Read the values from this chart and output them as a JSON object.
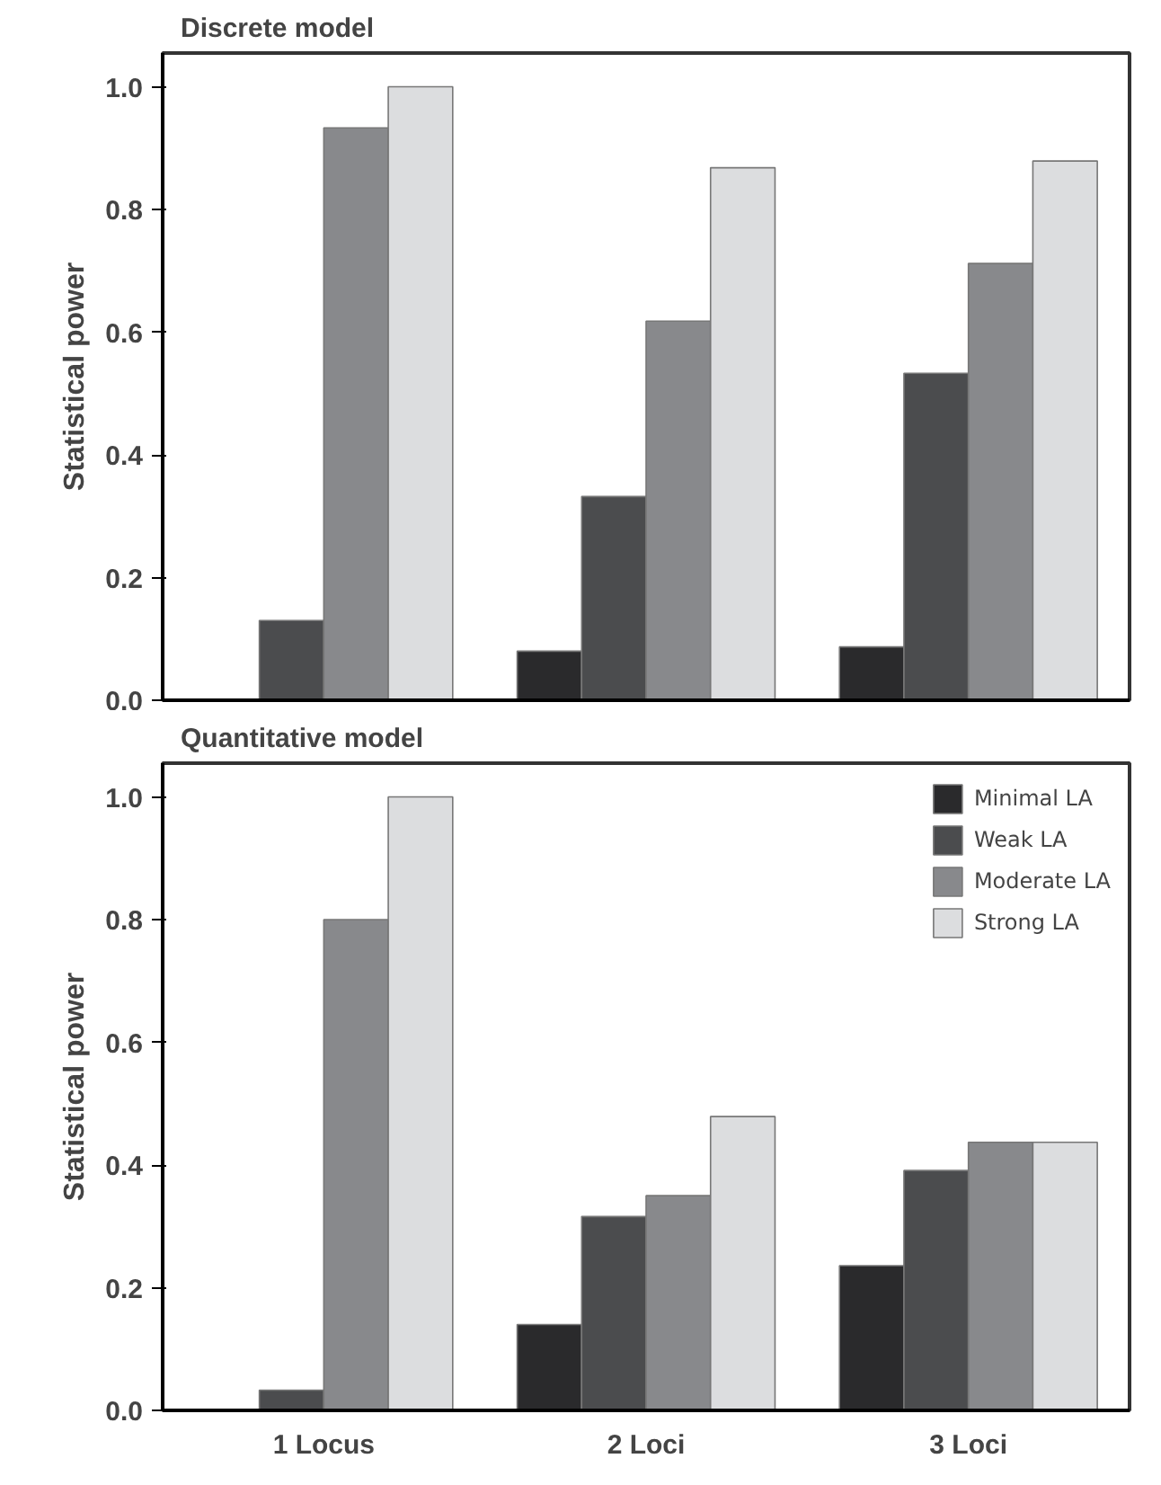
{
  "chart_data": [
    {
      "type": "bar",
      "title": "Discrete model",
      "ylabel": "Statistical power",
      "categories": [
        null,
        null,
        null
      ],
      "series": [
        {
          "color": "#2a2a2c",
          "values": [
            null,
            0.08,
            0.087
          ]
        },
        {
          "color": "#4b4c4e",
          "values": [
            0.13,
            0.332,
            0.533
          ]
        },
        {
          "color": "#88898c",
          "values": [
            0.933,
            0.618,
            0.712
          ]
        },
        {
          "color": "#dcdddf",
          "values": [
            1.0,
            0.868,
            0.879
          ]
        }
      ],
      "ylim": [
        0,
        1.055
      ],
      "yticks": [
        {
          "value": 0,
          "label": "0.0"
        },
        {
          "value": 0.2,
          "label": "0.2"
        },
        {
          "value": 0.4,
          "label": "0.4"
        },
        {
          "value": 0.6,
          "label": "0.6"
        },
        {
          "value": 0.8,
          "label": "0.8"
        },
        {
          "value": 1.0,
          "label": "1.0"
        }
      ],
      "grid": false,
      "legend": false,
      "tick_labels": "y"
    },
    {
      "type": "bar",
      "title": "Quantitative model",
      "ylabel": "Statistical power",
      "categories": [
        "1 Locus",
        "2 Loci",
        "3 Loci"
      ],
      "series": [
        {
          "name": "Minimal LA",
          "color": "#2a2a2c",
          "values": [
            null,
            0.14,
            0.236
          ]
        },
        {
          "name": "Weak LA",
          "color": "#4b4c4e",
          "values": [
            0.033,
            0.316,
            0.391
          ]
        },
        {
          "name": "Moderate LA",
          "color": "#88898c",
          "values": [
            0.8,
            0.35,
            0.437
          ]
        },
        {
          "name": "Strong LA",
          "color": "#dcdddf",
          "values": [
            1.0,
            0.479,
            0.437
          ]
        }
      ],
      "ylim": [
        0,
        1.055
      ],
      "yticks": [
        {
          "value": 0,
          "label": "0.0"
        },
        {
          "value": 0.2,
          "label": "0.2"
        },
        {
          "value": 0.4,
          "label": "0.4"
        },
        {
          "value": 0.6,
          "label": "0.6"
        },
        {
          "value": 0.8,
          "label": "0.8"
        },
        {
          "value": 1.0,
          "label": "1.0"
        }
      ],
      "grid": false,
      "legend": "top right"
    }
  ]
}
